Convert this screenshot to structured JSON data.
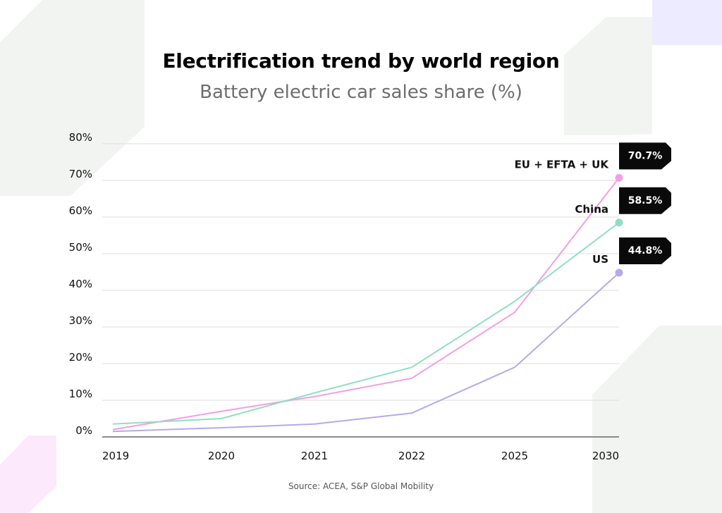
{
  "colors": {
    "eu": "#f49de6",
    "china": "#8fe0c0",
    "us": "#b5aaea",
    "grid": "#dddddd",
    "bg_gray": "#f2f4f2",
    "bg_lilac": "#ecebff",
    "bg_pink": "#fce9fb",
    "badge": "#0a0a0a"
  },
  "chart_data": {
    "type": "line",
    "title": "Electrification trend by world region",
    "subtitle": "Battery electric car sales share (%)",
    "source": "Source: ACEA, S&P Global Mobility",
    "categories": [
      "2019",
      "2020",
      "2021",
      "2022",
      "2025",
      "2030"
    ],
    "ylim": [
      0,
      80
    ],
    "y_ticks": [
      "0%",
      "10%",
      "20%",
      "30%",
      "40%",
      "50%",
      "60%",
      "70%",
      "80%"
    ],
    "grid": true,
    "series": [
      {
        "name": "EU + EFTA + UK",
        "key": "eu",
        "values": [
          2,
          7,
          11,
          16,
          34,
          70.7
        ],
        "end_label": "70.7%"
      },
      {
        "name": "China",
        "key": "china",
        "values": [
          3.5,
          5,
          12,
          19,
          37,
          58.5
        ],
        "end_label": "58.5%"
      },
      {
        "name": "US",
        "key": "us",
        "values": [
          1.5,
          2.5,
          3.5,
          6.5,
          19,
          44.8
        ],
        "end_label": "44.8%"
      }
    ]
  }
}
